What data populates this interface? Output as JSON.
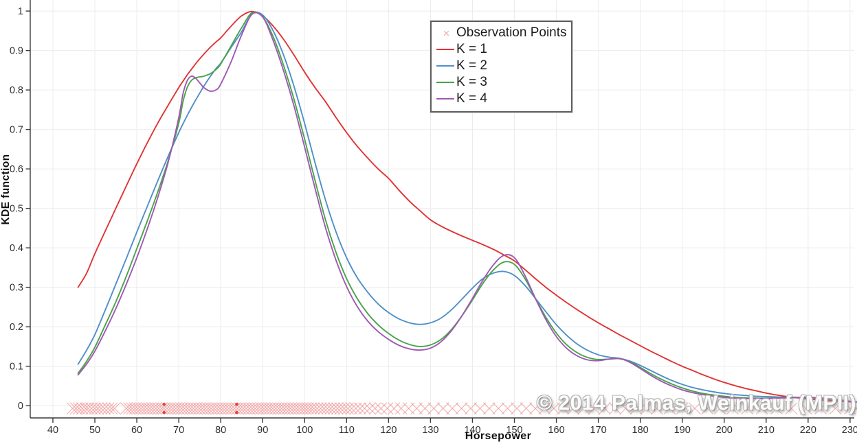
{
  "watermark": "© 2014 Palmas, Weinkauf (MPII)",
  "colors": {
    "background": "#ffffff",
    "grid": "#ececec",
    "axis": "#3a3a3a",
    "tick_text": "#2e2e2e",
    "k1": "#e03333",
    "k2": "#4f8fc8",
    "k3": "#47a447",
    "k4": "#9f58b4",
    "observation_marker": "#ee8a8a",
    "observation_emphasis": "#d83030"
  },
  "chart_data": {
    "type": "line",
    "title": "",
    "xlabel": "Horsepower",
    "ylabel": "KDE function",
    "xlim": [
      34.6,
      231.0
    ],
    "ylim": [
      -0.031,
      1.028
    ],
    "grid": true,
    "legend_position": "top-center",
    "xticks": [
      40,
      50,
      60,
      70,
      80,
      90,
      100,
      110,
      120,
      130,
      140,
      150,
      160,
      170,
      180,
      190,
      200,
      210,
      220,
      230
    ],
    "yticks": [
      0,
      0.1,
      0.2,
      0.3,
      0.4,
      0.5,
      0.6,
      0.7,
      0.8,
      0.9,
      1
    ],
    "ytick_labels": [
      "0",
      "0.1",
      "0.2",
      "0.3",
      "0.4",
      "0.5",
      "0.6",
      "0.7",
      "0.8",
      "0.9",
      "1"
    ],
    "x_common": [
      46,
      48,
      50,
      52.5,
      55,
      57.5,
      60,
      62.5,
      65,
      67.5,
      70,
      71,
      72,
      73,
      74,
      75,
      76,
      77.5,
      79,
      80,
      82.5,
      85,
      87.5,
      90,
      92.5,
      95,
      97.5,
      100,
      102.5,
      105,
      107.5,
      110,
      112.5,
      115,
      117.5,
      120,
      122.5,
      125,
      127.5,
      130,
      132.5,
      135,
      137.5,
      140,
      142.5,
      145,
      147.5,
      150,
      152.5,
      155,
      157.5,
      160,
      162.5,
      165,
      167.5,
      170,
      172.5,
      175,
      177.5,
      180,
      182.5,
      185,
      187.5,
      190,
      192.5,
      195,
      197.5,
      200,
      202.5,
      205,
      207.5,
      210,
      212.5,
      215,
      217.5,
      220,
      222.5,
      225,
      227.5,
      230,
      231.8
    ],
    "series": [
      {
        "name": "K = 1",
        "color": "#e03333",
        "y": [
          0.3,
          0.335,
          0.385,
          0.443,
          0.5,
          0.557,
          0.613,
          0.666,
          0.716,
          0.762,
          0.806,
          0.822,
          0.838,
          0.852,
          0.866,
          0.879,
          0.891,
          0.908,
          0.923,
          0.932,
          0.962,
          0.988,
          0.999,
          0.988,
          0.962,
          0.928,
          0.888,
          0.845,
          0.806,
          0.77,
          0.73,
          0.692,
          0.658,
          0.628,
          0.6,
          0.576,
          0.546,
          0.518,
          0.494,
          0.471,
          0.455,
          0.442,
          0.43,
          0.419,
          0.408,
          0.396,
          0.382,
          0.367,
          0.345,
          0.322,
          0.3,
          0.28,
          0.261,
          0.243,
          0.226,
          0.21,
          0.195,
          0.18,
          0.166,
          0.152,
          0.138,
          0.125,
          0.112,
          0.1,
          0.089,
          0.078,
          0.068,
          0.059,
          0.051,
          0.044,
          0.038,
          0.032,
          0.027,
          0.023,
          0.02,
          0.017,
          0.015,
          0.013,
          0.011,
          0.01,
          0.009
        ]
      },
      {
        "name": "K = 2",
        "color": "#4f8fc8",
        "y": [
          0.105,
          0.14,
          0.18,
          0.243,
          0.308,
          0.373,
          0.44,
          0.505,
          0.57,
          0.633,
          0.692,
          0.714,
          0.735,
          0.755,
          0.774,
          0.792,
          0.81,
          0.834,
          0.856,
          0.868,
          0.908,
          0.948,
          0.993,
          0.99,
          0.95,
          0.888,
          0.808,
          0.715,
          0.615,
          0.52,
          0.44,
          0.375,
          0.325,
          0.288,
          0.258,
          0.236,
          0.22,
          0.21,
          0.206,
          0.21,
          0.222,
          0.243,
          0.27,
          0.298,
          0.322,
          0.336,
          0.34,
          0.33,
          0.305,
          0.272,
          0.238,
          0.205,
          0.178,
          0.156,
          0.14,
          0.129,
          0.123,
          0.12,
          0.113,
          0.102,
          0.089,
          0.076,
          0.064,
          0.054,
          0.046,
          0.04,
          0.035,
          0.031,
          0.028,
          0.026,
          0.024,
          0.023,
          0.022,
          0.021,
          0.021,
          0.02,
          0.019,
          0.017,
          0.014,
          0.011,
          0.009
        ]
      },
      {
        "name": "K = 3",
        "color": "#47a447",
        "y": [
          0.082,
          0.112,
          0.148,
          0.205,
          0.263,
          0.328,
          0.398,
          0.468,
          0.542,
          0.622,
          0.716,
          0.77,
          0.806,
          0.824,
          0.831,
          0.833,
          0.835,
          0.841,
          0.853,
          0.866,
          0.912,
          0.958,
          0.996,
          0.985,
          0.935,
          0.862,
          0.775,
          0.675,
          0.57,
          0.47,
          0.388,
          0.322,
          0.272,
          0.234,
          0.205,
          0.183,
          0.166,
          0.155,
          0.15,
          0.154,
          0.168,
          0.193,
          0.228,
          0.268,
          0.31,
          0.344,
          0.364,
          0.358,
          0.322,
          0.272,
          0.224,
          0.184,
          0.154,
          0.134,
          0.122,
          0.117,
          0.118,
          0.119,
          0.111,
          0.097,
          0.081,
          0.067,
          0.055,
          0.045,
          0.037,
          0.031,
          0.027,
          0.024,
          0.021,
          0.02,
          0.019,
          0.019,
          0.02,
          0.02,
          0.021,
          0.021,
          0.019,
          0.017,
          0.014,
          0.011,
          0.009
        ]
      },
      {
        "name": "K = 4",
        "color": "#9f58b4",
        "y": [
          0.078,
          0.105,
          0.138,
          0.19,
          0.246,
          0.308,
          0.375,
          0.448,
          0.528,
          0.618,
          0.73,
          0.79,
          0.823,
          0.835,
          0.83,
          0.818,
          0.806,
          0.797,
          0.801,
          0.815,
          0.872,
          0.94,
          0.992,
          0.985,
          0.925,
          0.848,
          0.758,
          0.655,
          0.55,
          0.45,
          0.368,
          0.302,
          0.252,
          0.215,
          0.188,
          0.168,
          0.153,
          0.144,
          0.141,
          0.146,
          0.162,
          0.19,
          0.228,
          0.272,
          0.318,
          0.357,
          0.381,
          0.375,
          0.33,
          0.272,
          0.218,
          0.175,
          0.145,
          0.126,
          0.116,
          0.114,
          0.118,
          0.12,
          0.11,
          0.094,
          0.077,
          0.062,
          0.05,
          0.04,
          0.033,
          0.028,
          0.024,
          0.021,
          0.019,
          0.018,
          0.018,
          0.018,
          0.019,
          0.02,
          0.021,
          0.021,
          0.02,
          0.017,
          0.014,
          0.011,
          0.009
        ]
      }
    ],
    "observations": {
      "name": "Observation Points",
      "color": "#ee8a8a",
      "marker": "x",
      "y_position": 0,
      "x": [
        44.7,
        45.5,
        46.2,
        47,
        47.8,
        48.4,
        49.2,
        50,
        50.7,
        51.5,
        52.3,
        53.2,
        54,
        54.7,
        57.5,
        58.2,
        58.9,
        59.6,
        60.3,
        61,
        61.7,
        62.4,
        63.1,
        63.8,
        64.5,
        65.2,
        65.9,
        66.5,
        67.2,
        67.9,
        68.6,
        69.3,
        70,
        70.7,
        71.4,
        72.1,
        72.8,
        73.5,
        74.2,
        74.9,
        75.6,
        76.3,
        77,
        77.7,
        78.4,
        79.1,
        79.8,
        80.5,
        81.2,
        81.9,
        82.6,
        83.3,
        84,
        84.7,
        85.4,
        86.1,
        86.8,
        87.5,
        88.2,
        88.9,
        89.6,
        90.3,
        91,
        91.7,
        92.4,
        93.1,
        93.8,
        94.5,
        95.2,
        95.9,
        96.6,
        97.3,
        98,
        98.7,
        99.4,
        100.1,
        100.8,
        101.5,
        102.2,
        103,
        103.8,
        104.6,
        105.4,
        106.2,
        107,
        107.8,
        108.6,
        109.4,
        110.3,
        111.2,
        112.2,
        113.2,
        114.3,
        115.5,
        116.8,
        118.2,
        119.7,
        121.3,
        123,
        124.8,
        126.7,
        128.7,
        130.8,
        133,
        135.2,
        137.4,
        139.6,
        141.8,
        144,
        146.2,
        148.4,
        150.6,
        152.8,
        155,
        157.2,
        159.4,
        161.6,
        164,
        166.5,
        169,
        171.5,
        174,
        176.5,
        179,
        181.5,
        184,
        187,
        190,
        193,
        196,
        199,
        202,
        205.5,
        209,
        212.5,
        216,
        219.5,
        223,
        226.5,
        230,
        231.5
      ],
      "emphasized_x": [
        66.5,
        83.8
      ]
    }
  }
}
